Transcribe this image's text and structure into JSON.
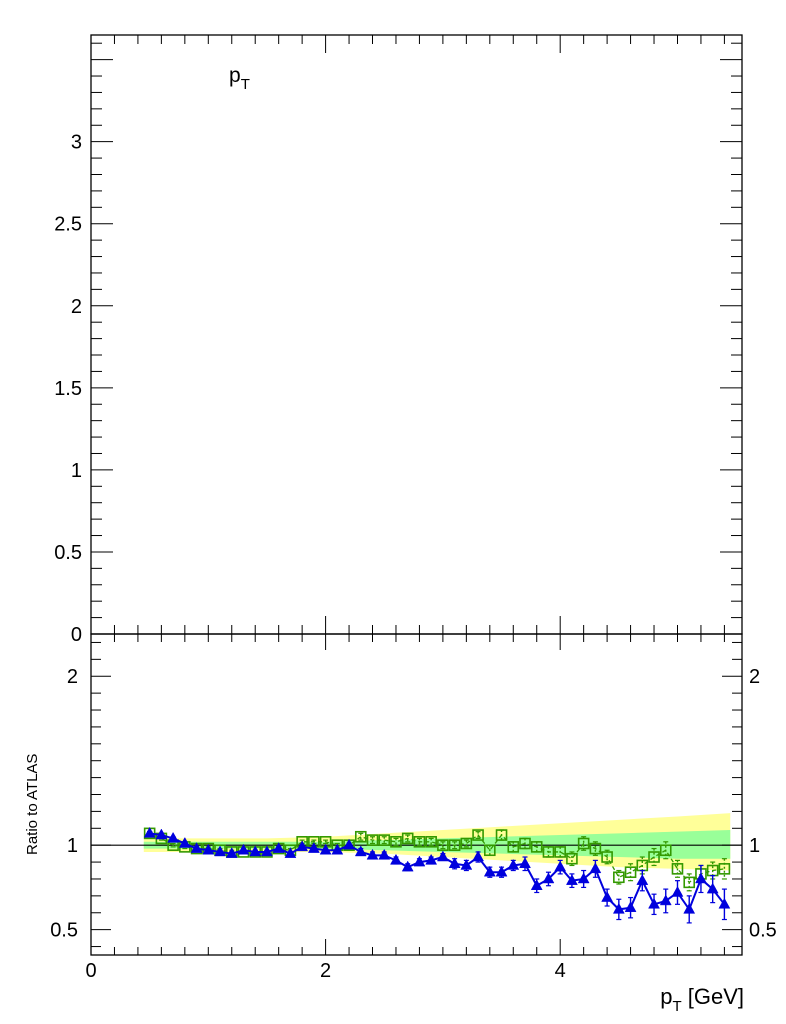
{
  "chart_data": [
    {
      "type": "line",
      "panel": "main",
      "title": "",
      "annotation": {
        "main": "p",
        "sub": "T"
      },
      "xlim": [
        0,
        5.55
      ],
      "ylim": [
        0,
        3.65
      ],
      "ytick_labels": [
        "0",
        "0.5",
        "1",
        "1.5",
        "2",
        "2.5",
        "3"
      ],
      "yticks": [
        0,
        0.5,
        1,
        1.5,
        2,
        2.5,
        3
      ],
      "series": []
    },
    {
      "type": "scatter",
      "panel": "ratio",
      "xlabel": {
        "main": "p",
        "sub": "T",
        "rest": " [GeV]"
      },
      "ylabel": "Ratio to ATLAS",
      "xlim": [
        0,
        5.55
      ],
      "ylim": [
        0.35,
        2.25
      ],
      "xticks": [
        0,
        2,
        4
      ],
      "xtick_labels": [
        "0",
        "2",
        "4"
      ],
      "yticks": [
        0.5,
        1,
        2
      ],
      "ytick_labels_left": [
        "0.5",
        "1",
        "2"
      ],
      "ytick_labels_right": [
        "0.5",
        "1",
        "2"
      ],
      "reference_line": 1,
      "bands": [
        {
          "color": "#ffff99",
          "x": [
            0.45,
            1.0,
            1.5,
            2.0,
            2.5,
            3.0,
            3.5,
            4.0,
            4.5,
            5.0,
            5.45
          ],
          "low": [
            0.96,
            0.96,
            0.96,
            0.96,
            0.95,
            0.93,
            0.91,
            0.89,
            0.87,
            0.86,
            0.85
          ],
          "high": [
            1.04,
            1.04,
            1.04,
            1.05,
            1.07,
            1.09,
            1.11,
            1.13,
            1.15,
            1.17,
            1.19
          ]
        },
        {
          "color": "#99ff99",
          "x": [
            0.45,
            1.0,
            1.5,
            2.0,
            2.5,
            3.0,
            3.5,
            4.0,
            4.5,
            5.0,
            5.45
          ],
          "low": [
            0.98,
            0.98,
            0.98,
            0.98,
            0.97,
            0.96,
            0.95,
            0.94,
            0.93,
            0.92,
            0.92
          ],
          "high": [
            1.02,
            1.02,
            1.02,
            1.02,
            1.03,
            1.04,
            1.05,
            1.06,
            1.07,
            1.08,
            1.09
          ]
        }
      ],
      "series": [
        {
          "marker": "open-square",
          "color": "#339900",
          "line": "dashed",
          "x": [
            0.5,
            0.6,
            0.7,
            0.8,
            0.9,
            1.0,
            1.1,
            1.2,
            1.3,
            1.4,
            1.5,
            1.6,
            1.7,
            1.8,
            1.9,
            2.0,
            2.1,
            2.2,
            2.3,
            2.4,
            2.5,
            2.6,
            2.7,
            2.8,
            2.9,
            3.0,
            3.1,
            3.2,
            3.3,
            3.4,
            3.5,
            3.6,
            3.7,
            3.8,
            3.9,
            4.0,
            4.1,
            4.2,
            4.3,
            4.4,
            4.5,
            4.6,
            4.7,
            4.8,
            4.9,
            5.0,
            5.1,
            5.2,
            5.3,
            5.4
          ],
          "y": [
            1.07,
            1.04,
            1.0,
            0.99,
            0.98,
            0.98,
            0.97,
            0.96,
            0.96,
            0.96,
            0.96,
            0.98,
            0.97,
            1.02,
            1.02,
            1.02,
            1.0,
            1.0,
            1.05,
            1.03,
            1.03,
            1.02,
            1.04,
            1.02,
            1.02,
            1.0,
            1.0,
            1.01,
            1.06,
            0.97,
            1.06,
            0.99,
            1.01,
            0.99,
            0.96,
            0.96,
            0.92,
            1.01,
            0.98,
            0.93,
            0.81,
            0.84,
            0.88,
            0.93,
            0.97,
            0.86,
            0.78,
            0.83,
            0.85,
            0.86
          ],
          "err": [
            0.01,
            0.01,
            0.01,
            0.01,
            0.01,
            0.01,
            0.01,
            0.01,
            0.01,
            0.01,
            0.01,
            0.01,
            0.01,
            0.01,
            0.01,
            0.01,
            0.01,
            0.01,
            0.02,
            0.02,
            0.02,
            0.02,
            0.02,
            0.02,
            0.02,
            0.02,
            0.02,
            0.02,
            0.02,
            0.03,
            0.03,
            0.03,
            0.03,
            0.03,
            0.03,
            0.03,
            0.04,
            0.04,
            0.04,
            0.04,
            0.04,
            0.05,
            0.05,
            0.05,
            0.05,
            0.05,
            0.05,
            0.05,
            0.05,
            0.06
          ]
        },
        {
          "marker": "filled-triangle",
          "color": "#0000dd",
          "line": "solid",
          "x": [
            0.5,
            0.6,
            0.7,
            0.8,
            0.9,
            1.0,
            1.1,
            1.2,
            1.3,
            1.4,
            1.5,
            1.6,
            1.7,
            1.8,
            1.9,
            2.0,
            2.1,
            2.2,
            2.3,
            2.4,
            2.5,
            2.6,
            2.7,
            2.8,
            2.9,
            3.0,
            3.1,
            3.2,
            3.3,
            3.4,
            3.5,
            3.6,
            3.7,
            3.8,
            3.9,
            4.0,
            4.1,
            4.2,
            4.3,
            4.4,
            4.5,
            4.6,
            4.7,
            4.8,
            4.9,
            5.0,
            5.1,
            5.2,
            5.3,
            5.4
          ],
          "y": [
            1.07,
            1.06,
            1.04,
            1.01,
            0.98,
            0.97,
            0.96,
            0.95,
            0.97,
            0.96,
            0.96,
            0.98,
            0.95,
            0.99,
            0.98,
            0.97,
            0.97,
            1.0,
            0.96,
            0.94,
            0.94,
            0.91,
            0.87,
            0.9,
            0.91,
            0.93,
            0.89,
            0.88,
            0.93,
            0.84,
            0.84,
            0.88,
            0.89,
            0.76,
            0.8,
            0.87,
            0.79,
            0.8,
            0.86,
            0.69,
            0.62,
            0.63,
            0.79,
            0.65,
            0.67,
            0.72,
            0.62,
            0.8,
            0.74,
            0.65
          ],
          "err": [
            0.01,
            0.01,
            0.01,
            0.01,
            0.01,
            0.01,
            0.01,
            0.01,
            0.01,
            0.01,
            0.01,
            0.01,
            0.01,
            0.01,
            0.01,
            0.01,
            0.01,
            0.01,
            0.02,
            0.02,
            0.02,
            0.02,
            0.02,
            0.02,
            0.02,
            0.02,
            0.03,
            0.03,
            0.03,
            0.03,
            0.03,
            0.03,
            0.04,
            0.04,
            0.04,
            0.04,
            0.04,
            0.05,
            0.05,
            0.05,
            0.06,
            0.06,
            0.06,
            0.06,
            0.07,
            0.07,
            0.08,
            0.08,
            0.08,
            0.09
          ]
        }
      ]
    }
  ]
}
